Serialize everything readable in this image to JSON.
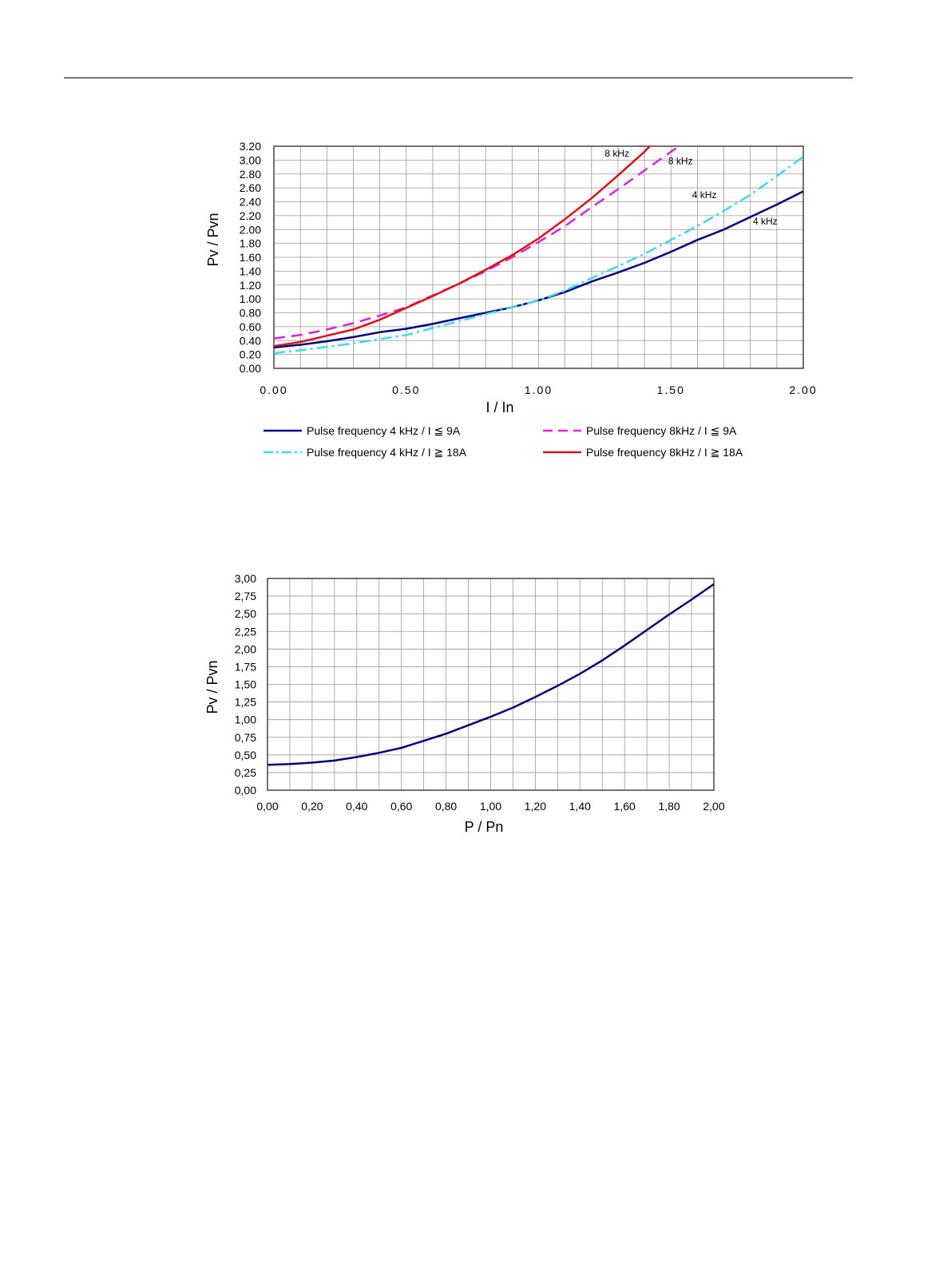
{
  "chart_data": [
    {
      "type": "line",
      "title": "",
      "xlabel": "I / In",
      "ylabel": "Pv / Pvn",
      "xlim": [
        0,
        2
      ],
      "ylim": [
        0,
        3.2
      ],
      "x_ticks": [
        "0.00",
        "0.50",
        "1.00",
        "1.50",
        "2.00"
      ],
      "y_ticks": [
        "0.00",
        "0.20",
        "0.40",
        "0.60",
        "0.80",
        "1.00",
        "1.20",
        "1.40",
        "1.60",
        "1.80",
        "2.00",
        "2.20",
        "2.40",
        "2.60",
        "2.80",
        "3.00",
        "3.20"
      ],
      "grid": true,
      "series": [
        {
          "name": "Pulse frequency 4 kHz / I ≦ 9A",
          "color": "#000080",
          "style": "solid",
          "x": [
            0,
            0.1,
            0.2,
            0.3,
            0.4,
            0.5,
            0.6,
            0.7,
            0.8,
            0.9,
            1.0,
            1.1,
            1.2,
            1.3,
            1.4,
            1.5,
            1.6,
            1.7,
            1.8,
            1.9,
            2.0
          ],
          "y": [
            0.3,
            0.34,
            0.39,
            0.45,
            0.52,
            0.57,
            0.64,
            0.72,
            0.8,
            0.88,
            0.98,
            1.1,
            1.25,
            1.38,
            1.52,
            1.68,
            1.85,
            2.0,
            2.18,
            2.36,
            2.55
          ]
        },
        {
          "name": "Pulse frequency 4 kHz / I ≧ 18A",
          "color": "#33DDEE",
          "style": "dashdot",
          "x": [
            0,
            0.1,
            0.2,
            0.3,
            0.4,
            0.5,
            0.6,
            0.7,
            0.8,
            0.9,
            1.0,
            1.1,
            1.2,
            1.3,
            1.4,
            1.5,
            1.6,
            1.7,
            1.8,
            1.9,
            2.0
          ],
          "y": [
            0.22,
            0.26,
            0.31,
            0.36,
            0.42,
            0.48,
            0.58,
            0.68,
            0.78,
            0.88,
            0.98,
            1.12,
            1.3,
            1.47,
            1.65,
            1.85,
            2.05,
            2.27,
            2.5,
            2.77,
            3.05
          ]
        },
        {
          "name": "Pulse frequency 8kHz / I ≦ 9A",
          "color": "#DD22DD",
          "style": "dashed",
          "x": [
            0,
            0.1,
            0.2,
            0.3,
            0.4,
            0.5,
            0.6,
            0.7,
            0.8,
            0.9,
            1.0,
            1.1,
            1.2,
            1.3,
            1.4,
            1.5,
            1.53
          ],
          "y": [
            0.43,
            0.48,
            0.56,
            0.65,
            0.76,
            0.88,
            1.05,
            1.22,
            1.4,
            1.6,
            1.82,
            2.05,
            2.32,
            2.58,
            2.85,
            3.12,
            3.2
          ]
        },
        {
          "name": "Pulse frequency 8kHz / I ≧ 18A",
          "color": "#DD1111",
          "style": "solid",
          "x": [
            0,
            0.1,
            0.2,
            0.3,
            0.4,
            0.5,
            0.6,
            0.7,
            0.8,
            0.9,
            1.0,
            1.1,
            1.2,
            1.3,
            1.4,
            1.42
          ],
          "y": [
            0.32,
            0.38,
            0.47,
            0.56,
            0.7,
            0.87,
            1.04,
            1.22,
            1.42,
            1.63,
            1.87,
            2.15,
            2.45,
            2.78,
            3.12,
            3.2
          ]
        }
      ],
      "annotations": [
        {
          "text": "8 kHz",
          "x": 1.25,
          "y": 3.05
        },
        {
          "text": "8 kHz",
          "x": 1.49,
          "y": 2.94
        },
        {
          "text": "4 kHz",
          "x": 1.58,
          "y": 2.45
        },
        {
          "text": "4 kHz",
          "x": 1.81,
          "y": 2.07
        }
      ]
    },
    {
      "type": "line",
      "title": "",
      "xlabel": "P / Pn",
      "ylabel": "Pv / Pvn",
      "xlim": [
        0,
        2
      ],
      "ylim": [
        0,
        3
      ],
      "x_ticks": [
        "0,00",
        "0,20",
        "0,40",
        "0,60",
        "0,80",
        "1,00",
        "1,20",
        "1,40",
        "1,60",
        "1,80",
        "2,00"
      ],
      "y_ticks": [
        "0,00",
        "0,25",
        "0,50",
        "0,75",
        "1,00",
        "1,25",
        "1,50",
        "1,75",
        "2,00",
        "2,25",
        "2,50",
        "2,75",
        "3,00"
      ],
      "grid": true,
      "series": [
        {
          "name": "",
          "color": "#000080",
          "style": "solid",
          "x": [
            0,
            0.1,
            0.2,
            0.3,
            0.4,
            0.5,
            0.6,
            0.7,
            0.8,
            0.9,
            1.0,
            1.1,
            1.2,
            1.3,
            1.4,
            1.5,
            1.6,
            1.7,
            1.8,
            1.9,
            2.0
          ],
          "y": [
            0.36,
            0.37,
            0.39,
            0.42,
            0.47,
            0.53,
            0.6,
            0.7,
            0.8,
            0.92,
            1.04,
            1.17,
            1.32,
            1.48,
            1.65,
            1.84,
            2.05,
            2.27,
            2.49,
            2.7,
            2.92
          ]
        }
      ]
    }
  ]
}
